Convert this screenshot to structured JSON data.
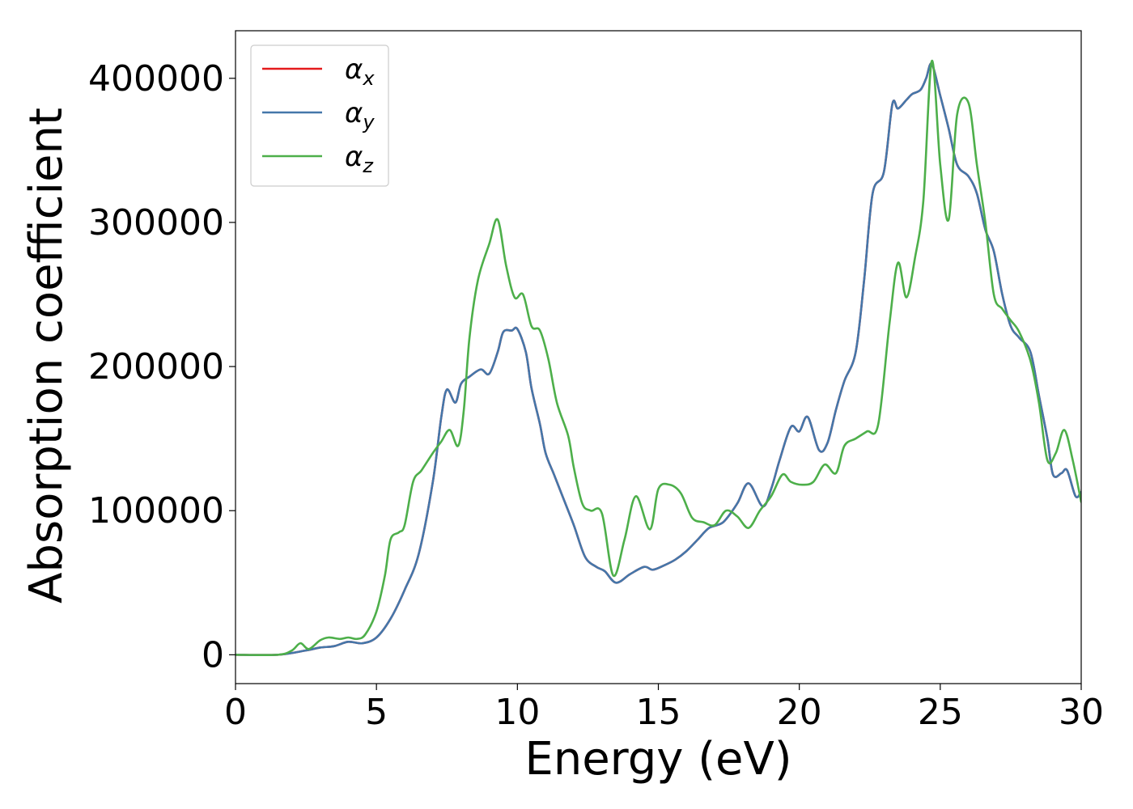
{
  "chart_data": {
    "type": "line",
    "title": "",
    "xlabel": "Energy (eV)",
    "ylabel": "Absorption coefficient",
    "xlim": [
      0,
      30
    ],
    "ylim": [
      -20000,
      433000
    ],
    "xticks": [
      "0",
      "5",
      "10",
      "15",
      "20",
      "25",
      "30"
    ],
    "yticks": [
      "0",
      "100000",
      "200000",
      "300000",
      "400000"
    ],
    "grid": false,
    "legend_position": "upper-left",
    "series": [
      {
        "name": "α",
        "subscript": "x",
        "color": "#e41a1c",
        "points": [
          [
            0,
            0
          ],
          [
            1.5,
            0
          ],
          [
            2.5,
            3000
          ],
          [
            3,
            5000
          ],
          [
            3.5,
            6000
          ],
          [
            4,
            9000
          ],
          [
            4.5,
            8000
          ],
          [
            5,
            12000
          ],
          [
            5.5,
            25000
          ],
          [
            6,
            45000
          ],
          [
            6.5,
            70000
          ],
          [
            7,
            120000
          ],
          [
            7.3,
            165000
          ],
          [
            7.5,
            184000
          ],
          [
            7.8,
            175000
          ],
          [
            8,
            188000
          ],
          [
            8.3,
            193000
          ],
          [
            8.7,
            198000
          ],
          [
            9,
            195000
          ],
          [
            9.3,
            210000
          ],
          [
            9.5,
            224000
          ],
          [
            9.8,
            225000
          ],
          [
            10,
            226000
          ],
          [
            10.3,
            210000
          ],
          [
            10.5,
            185000
          ],
          [
            10.8,
            160000
          ],
          [
            11,
            140000
          ],
          [
            11.3,
            125000
          ],
          [
            11.6,
            110000
          ],
          [
            12,
            90000
          ],
          [
            12.4,
            68000
          ],
          [
            12.8,
            61000
          ],
          [
            13.1,
            58000
          ],
          [
            13.5,
            50000
          ],
          [
            14,
            56000
          ],
          [
            14.5,
            61000
          ],
          [
            14.8,
            59000
          ],
          [
            15.2,
            62000
          ],
          [
            15.6,
            66000
          ],
          [
            16,
            72000
          ],
          [
            16.4,
            80000
          ],
          [
            16.8,
            88000
          ],
          [
            17.3,
            92000
          ],
          [
            17.8,
            105000
          ],
          [
            18.2,
            119000
          ],
          [
            18.7,
            103000
          ],
          [
            19,
            115000
          ],
          [
            19.3,
            135000
          ],
          [
            19.7,
            158000
          ],
          [
            20,
            155000
          ],
          [
            20.3,
            165000
          ],
          [
            20.7,
            142000
          ],
          [
            21,
            147000
          ],
          [
            21.3,
            170000
          ],
          [
            21.6,
            190000
          ],
          [
            22,
            210000
          ],
          [
            22.3,
            260000
          ],
          [
            22.6,
            320000
          ],
          [
            23,
            335000
          ],
          [
            23.3,
            382000
          ],
          [
            23.5,
            379000
          ],
          [
            23.8,
            385000
          ],
          [
            24,
            389000
          ],
          [
            24.3,
            392000
          ],
          [
            24.5,
            400000
          ],
          [
            24.7,
            410000
          ],
          [
            25,
            388000
          ],
          [
            25.3,
            365000
          ],
          [
            25.6,
            340000
          ],
          [
            26,
            332000
          ],
          [
            26.3,
            320000
          ],
          [
            26.6,
            295000
          ],
          [
            26.9,
            280000
          ],
          [
            27.2,
            250000
          ],
          [
            27.5,
            228000
          ],
          [
            27.8,
            220000
          ],
          [
            28.2,
            210000
          ],
          [
            28.5,
            180000
          ],
          [
            28.8,
            150000
          ],
          [
            29,
            125000
          ],
          [
            29.3,
            126000
          ],
          [
            29.5,
            128000
          ],
          [
            29.8,
            110000
          ],
          [
            30,
            113000
          ]
        ]
      },
      {
        "name": "α",
        "subscript": "y",
        "color": "#4477aa",
        "points": [
          [
            0,
            0
          ],
          [
            1.5,
            0
          ],
          [
            2.5,
            3000
          ],
          [
            3,
            5000
          ],
          [
            3.5,
            6000
          ],
          [
            4,
            9000
          ],
          [
            4.5,
            8000
          ],
          [
            5,
            12000
          ],
          [
            5.5,
            25000
          ],
          [
            6,
            45000
          ],
          [
            6.5,
            70000
          ],
          [
            7,
            120000
          ],
          [
            7.3,
            165000
          ],
          [
            7.5,
            184000
          ],
          [
            7.8,
            175000
          ],
          [
            8,
            188000
          ],
          [
            8.3,
            193000
          ],
          [
            8.7,
            198000
          ],
          [
            9,
            195000
          ],
          [
            9.3,
            210000
          ],
          [
            9.5,
            224000
          ],
          [
            9.8,
            225000
          ],
          [
            10,
            226000
          ],
          [
            10.3,
            210000
          ],
          [
            10.5,
            185000
          ],
          [
            10.8,
            160000
          ],
          [
            11,
            140000
          ],
          [
            11.3,
            125000
          ],
          [
            11.6,
            110000
          ],
          [
            12,
            90000
          ],
          [
            12.4,
            68000
          ],
          [
            12.8,
            61000
          ],
          [
            13.1,
            58000
          ],
          [
            13.5,
            50000
          ],
          [
            14,
            56000
          ],
          [
            14.5,
            61000
          ],
          [
            14.8,
            59000
          ],
          [
            15.2,
            62000
          ],
          [
            15.6,
            66000
          ],
          [
            16,
            72000
          ],
          [
            16.4,
            80000
          ],
          [
            16.8,
            88000
          ],
          [
            17.3,
            92000
          ],
          [
            17.8,
            105000
          ],
          [
            18.2,
            119000
          ],
          [
            18.7,
            103000
          ],
          [
            19,
            115000
          ],
          [
            19.3,
            135000
          ],
          [
            19.7,
            158000
          ],
          [
            20,
            155000
          ],
          [
            20.3,
            165000
          ],
          [
            20.7,
            142000
          ],
          [
            21,
            147000
          ],
          [
            21.3,
            170000
          ],
          [
            21.6,
            190000
          ],
          [
            22,
            210000
          ],
          [
            22.3,
            260000
          ],
          [
            22.6,
            320000
          ],
          [
            23,
            335000
          ],
          [
            23.3,
            382000
          ],
          [
            23.5,
            379000
          ],
          [
            23.8,
            385000
          ],
          [
            24,
            389000
          ],
          [
            24.3,
            392000
          ],
          [
            24.5,
            400000
          ],
          [
            24.7,
            410000
          ],
          [
            25,
            388000
          ],
          [
            25.3,
            365000
          ],
          [
            25.6,
            340000
          ],
          [
            26,
            332000
          ],
          [
            26.3,
            320000
          ],
          [
            26.6,
            295000
          ],
          [
            26.9,
            280000
          ],
          [
            27.2,
            250000
          ],
          [
            27.5,
            228000
          ],
          [
            27.8,
            220000
          ],
          [
            28.2,
            210000
          ],
          [
            28.5,
            180000
          ],
          [
            28.8,
            150000
          ],
          [
            29,
            125000
          ],
          [
            29.3,
            126000
          ],
          [
            29.5,
            128000
          ],
          [
            29.8,
            110000
          ],
          [
            30,
            113000
          ]
        ]
      },
      {
        "name": "α",
        "subscript": "z",
        "color": "#4daf4a",
        "points": [
          [
            0,
            0
          ],
          [
            1.5,
            0
          ],
          [
            2,
            3000
          ],
          [
            2.3,
            8000
          ],
          [
            2.6,
            4000
          ],
          [
            3,
            10000
          ],
          [
            3.3,
            12000
          ],
          [
            3.7,
            11000
          ],
          [
            4,
            12000
          ],
          [
            4.3,
            11000
          ],
          [
            4.6,
            14000
          ],
          [
            5,
            30000
          ],
          [
            5.3,
            55000
          ],
          [
            5.5,
            80000
          ],
          [
            5.8,
            85000
          ],
          [
            6,
            90000
          ],
          [
            6.3,
            120000
          ],
          [
            6.6,
            128000
          ],
          [
            7,
            140000
          ],
          [
            7.3,
            148000
          ],
          [
            7.6,
            156000
          ],
          [
            7.9,
            145000
          ],
          [
            8.1,
            170000
          ],
          [
            8.3,
            220000
          ],
          [
            8.6,
            260000
          ],
          [
            9,
            285000
          ],
          [
            9.3,
            302000
          ],
          [
            9.6,
            270000
          ],
          [
            9.9,
            248000
          ],
          [
            10.2,
            250000
          ],
          [
            10.5,
            228000
          ],
          [
            10.8,
            225000
          ],
          [
            11.1,
            205000
          ],
          [
            11.4,
            175000
          ],
          [
            11.8,
            152000
          ],
          [
            12,
            130000
          ],
          [
            12.3,
            105000
          ],
          [
            12.6,
            100000
          ],
          [
            13,
            98000
          ],
          [
            13.4,
            55000
          ],
          [
            13.8,
            80000
          ],
          [
            14.2,
            110000
          ],
          [
            14.7,
            87000
          ],
          [
            15,
            115000
          ],
          [
            15.4,
            118000
          ],
          [
            15.8,
            112000
          ],
          [
            16.2,
            95000
          ],
          [
            16.6,
            92000
          ],
          [
            17,
            90000
          ],
          [
            17.4,
            100000
          ],
          [
            17.8,
            96000
          ],
          [
            18.2,
            88000
          ],
          [
            18.6,
            100000
          ],
          [
            19,
            110000
          ],
          [
            19.4,
            125000
          ],
          [
            19.7,
            120000
          ],
          [
            20.1,
            118000
          ],
          [
            20.5,
            120000
          ],
          [
            20.9,
            132000
          ],
          [
            21.3,
            126000
          ],
          [
            21.6,
            145000
          ],
          [
            22,
            150000
          ],
          [
            22.4,
            155000
          ],
          [
            22.8,
            160000
          ],
          [
            23.2,
            230000
          ],
          [
            23.5,
            272000
          ],
          [
            23.8,
            248000
          ],
          [
            24.1,
            275000
          ],
          [
            24.4,
            315000
          ],
          [
            24.7,
            412000
          ],
          [
            25,
            340000
          ],
          [
            25.3,
            302000
          ],
          [
            25.6,
            375000
          ],
          [
            26,
            383000
          ],
          [
            26.3,
            340000
          ],
          [
            26.6,
            300000
          ],
          [
            26.9,
            250000
          ],
          [
            27.2,
            240000
          ],
          [
            27.5,
            232000
          ],
          [
            27.8,
            224000
          ],
          [
            28.2,
            204000
          ],
          [
            28.5,
            175000
          ],
          [
            28.8,
            135000
          ],
          [
            29.1,
            140000
          ],
          [
            29.4,
            156000
          ],
          [
            29.7,
            135000
          ],
          [
            30,
            106000
          ]
        ]
      }
    ]
  }
}
